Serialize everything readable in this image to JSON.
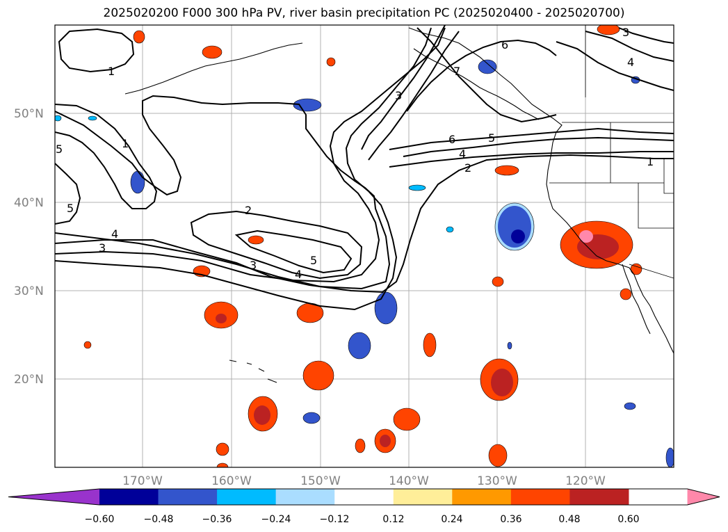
{
  "title": "2025020200 F000 300 hPa PV, river basin precipitation PC (2025020400 - 2025020700)",
  "lat_labels": [
    "50°N",
    "40°N",
    "30°N",
    "20°N"
  ],
  "lon_labels": [
    "170°W",
    "160°W",
    "150°W",
    "140°W",
    "130°W",
    "120°W"
  ],
  "contour_labels": [
    "1",
    "1",
    "1",
    "2",
    "2",
    "3",
    "3",
    "3",
    "3",
    "4",
    "4",
    "4",
    "4",
    "5",
    "5",
    "5",
    "5",
    "6",
    "6",
    "7"
  ],
  "colorbar": {
    "tick_labels": [
      "−0.60",
      "−0.48",
      "−0.36",
      "−0.24",
      "−0.12",
      "0.12",
      "0.24",
      "0.36",
      "0.48",
      "0.60"
    ],
    "colors": [
      "#9933cc",
      "#000099",
      "#3355cc",
      "#00bbff",
      "#aaddff",
      "#ffffff",
      "#ffee99",
      "#ff9900",
      "#ff4400",
      "#bb2222",
      "#ff88aa"
    ]
  }
}
